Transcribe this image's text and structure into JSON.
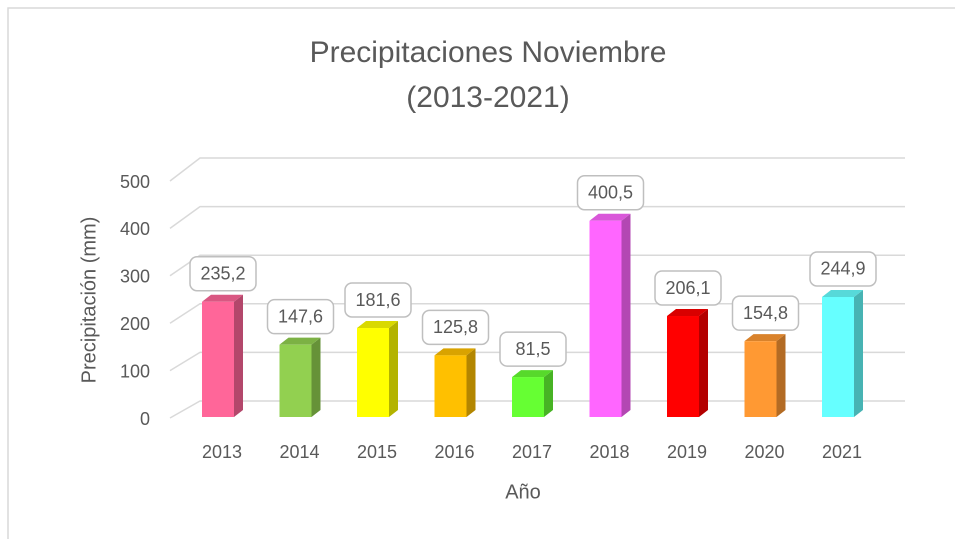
{
  "chart_data": {
    "type": "bar3d",
    "title": "Precipitaciones Noviembre",
    "subtitle": "(2013-2021)",
    "x_label": "Año",
    "y_label": "Precipitación (mm)",
    "categories": [
      "2013",
      "2014",
      "2015",
      "2016",
      "2017",
      "2018",
      "2019",
      "2020",
      "2021"
    ],
    "values": [
      235.2,
      147.6,
      181.6,
      125.8,
      81.5,
      400.5,
      206.1,
      154.8,
      244.9
    ],
    "value_labels": [
      "235,2",
      "147,6",
      "181,6",
      "125,8",
      "81,5",
      "400,5",
      "206,1",
      "154,8",
      "244,9"
    ],
    "colors": [
      "#ff6699",
      "#92d050",
      "#ffff00",
      "#ffc000",
      "#66ff33",
      "#ff66ff",
      "#ff0000",
      "#ff9933",
      "#66ffff"
    ],
    "ylim": [
      0,
      500
    ],
    "yticks": [
      0,
      100,
      200,
      300,
      400,
      500
    ],
    "grid": true
  }
}
